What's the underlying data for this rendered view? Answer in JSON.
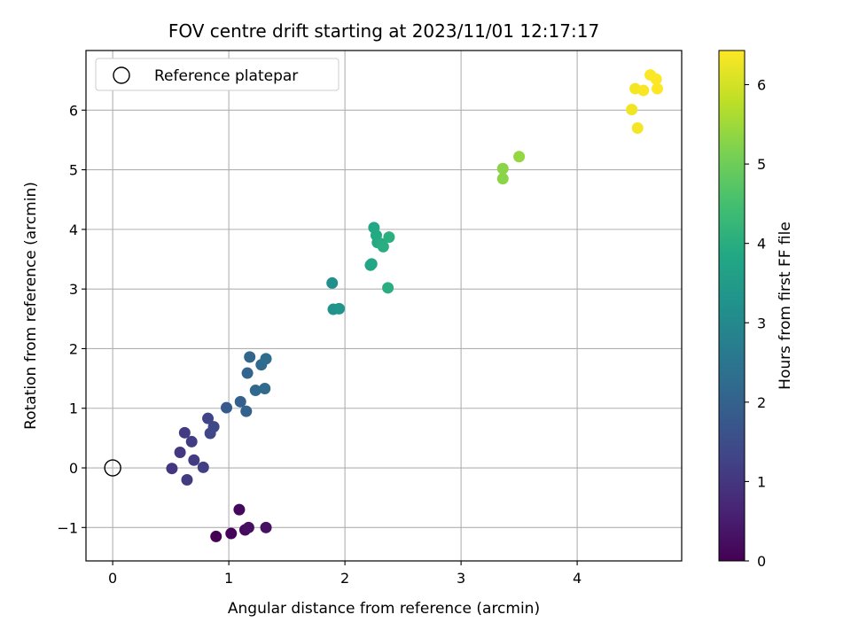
{
  "chart_data": {
    "type": "scatter",
    "title": "FOV centre drift starting at 2023/11/01 12:17:17",
    "xlabel": "Angular distance from reference (arcmin)",
    "ylabel": "Rotation from reference (arcmin)",
    "xlim": [
      -0.23,
      4.9
    ],
    "ylim": [
      -1.56,
      7.0
    ],
    "xticks": [
      0,
      1,
      2,
      3,
      4
    ],
    "yticks": [
      -1,
      0,
      1,
      2,
      3,
      4,
      5,
      6
    ],
    "xtick_labels": [
      "0",
      "1",
      "2",
      "3",
      "4"
    ],
    "ytick_labels": [
      "−1",
      "0",
      "1",
      "2",
      "3",
      "4",
      "5",
      "6"
    ],
    "grid": true,
    "colormap": "viridis",
    "colorbar": {
      "label": "Hours from first FF file",
      "range": [
        0,
        6.43
      ],
      "ticks": [
        0,
        1,
        2,
        3,
        4,
        5,
        6
      ],
      "tick_labels": [
        "0",
        "1",
        "2",
        "3",
        "4",
        "5",
        "6"
      ]
    },
    "legend": {
      "position": "top-left",
      "entries": [
        {
          "label": "Reference platepar",
          "marker": "open-circle"
        }
      ]
    },
    "reference_point": {
      "x": 0,
      "y": 0
    },
    "points": [
      {
        "x": 0.89,
        "y": -1.15,
        "c": 0.0
      },
      {
        "x": 1.02,
        "y": -1.1,
        "c": 0.1
      },
      {
        "x": 1.09,
        "y": -0.7,
        "c": 0.15
      },
      {
        "x": 1.14,
        "y": -1.04,
        "c": 0.2
      },
      {
        "x": 1.17,
        "y": -1.0,
        "c": 0.25
      },
      {
        "x": 1.32,
        "y": -1.0,
        "c": 0.3
      },
      {
        "x": 0.51,
        "y": -0.01,
        "c": 1.0
      },
      {
        "x": 0.58,
        "y": 0.26,
        "c": 1.05
      },
      {
        "x": 0.62,
        "y": 0.59,
        "c": 1.1
      },
      {
        "x": 0.64,
        "y": -0.2,
        "c": 1.1
      },
      {
        "x": 0.68,
        "y": 0.44,
        "c": 1.15
      },
      {
        "x": 0.7,
        "y": 0.13,
        "c": 1.15
      },
      {
        "x": 0.78,
        "y": 0.01,
        "c": 1.2
      },
      {
        "x": 0.82,
        "y": 0.83,
        "c": 1.3
      },
      {
        "x": 0.84,
        "y": 0.58,
        "c": 1.35
      },
      {
        "x": 0.87,
        "y": 0.69,
        "c": 1.4
      },
      {
        "x": 0.98,
        "y": 1.01,
        "c": 1.8
      },
      {
        "x": 1.1,
        "y": 1.11,
        "c": 1.95
      },
      {
        "x": 1.15,
        "y": 0.95,
        "c": 2.0
      },
      {
        "x": 1.16,
        "y": 1.59,
        "c": 2.05
      },
      {
        "x": 1.18,
        "y": 1.86,
        "c": 2.1
      },
      {
        "x": 1.23,
        "y": 1.3,
        "c": 2.15
      },
      {
        "x": 1.28,
        "y": 1.73,
        "c": 2.2
      },
      {
        "x": 1.31,
        "y": 1.33,
        "c": 2.25
      },
      {
        "x": 1.32,
        "y": 1.83,
        "c": 2.3
      },
      {
        "x": 1.89,
        "y": 3.1,
        "c": 3.2
      },
      {
        "x": 1.9,
        "y": 2.66,
        "c": 3.25
      },
      {
        "x": 1.95,
        "y": 2.67,
        "c": 3.3
      },
      {
        "x": 2.22,
        "y": 3.4,
        "c": 3.8
      },
      {
        "x": 2.23,
        "y": 3.42,
        "c": 3.8
      },
      {
        "x": 2.25,
        "y": 4.03,
        "c": 3.85
      },
      {
        "x": 2.27,
        "y": 3.9,
        "c": 3.9
      },
      {
        "x": 2.28,
        "y": 3.78,
        "c": 3.9
      },
      {
        "x": 2.31,
        "y": 3.76,
        "c": 3.95
      },
      {
        "x": 2.33,
        "y": 3.71,
        "c": 4.0
      },
      {
        "x": 2.37,
        "y": 3.02,
        "c": 4.0
      },
      {
        "x": 2.38,
        "y": 3.87,
        "c": 4.05
      },
      {
        "x": 3.36,
        "y": 5.02,
        "c": 5.3
      },
      {
        "x": 3.36,
        "y": 4.85,
        "c": 5.3
      },
      {
        "x": 3.5,
        "y": 5.22,
        "c": 5.4
      },
      {
        "x": 4.47,
        "y": 6.01,
        "c": 6.3
      },
      {
        "x": 4.5,
        "y": 6.36,
        "c": 6.35
      },
      {
        "x": 4.52,
        "y": 5.7,
        "c": 6.35
      },
      {
        "x": 4.57,
        "y": 6.33,
        "c": 6.38
      },
      {
        "x": 4.63,
        "y": 6.59,
        "c": 6.4
      },
      {
        "x": 4.68,
        "y": 6.52,
        "c": 6.42
      },
      {
        "x": 4.69,
        "y": 6.36,
        "c": 6.43
      }
    ]
  }
}
